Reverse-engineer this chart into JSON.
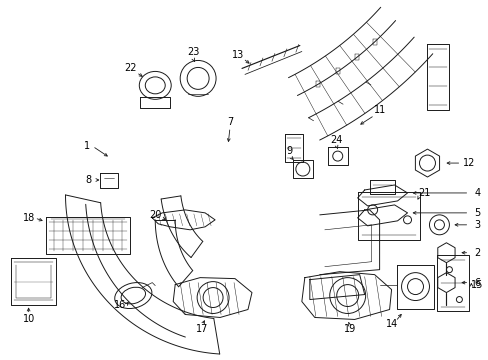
{
  "bg_color": "#ffffff",
  "lc": "#1a1a1a",
  "lw": 0.7,
  "fs": 7.0,
  "fig_w": 4.89,
  "fig_h": 3.6,
  "dpi": 100
}
